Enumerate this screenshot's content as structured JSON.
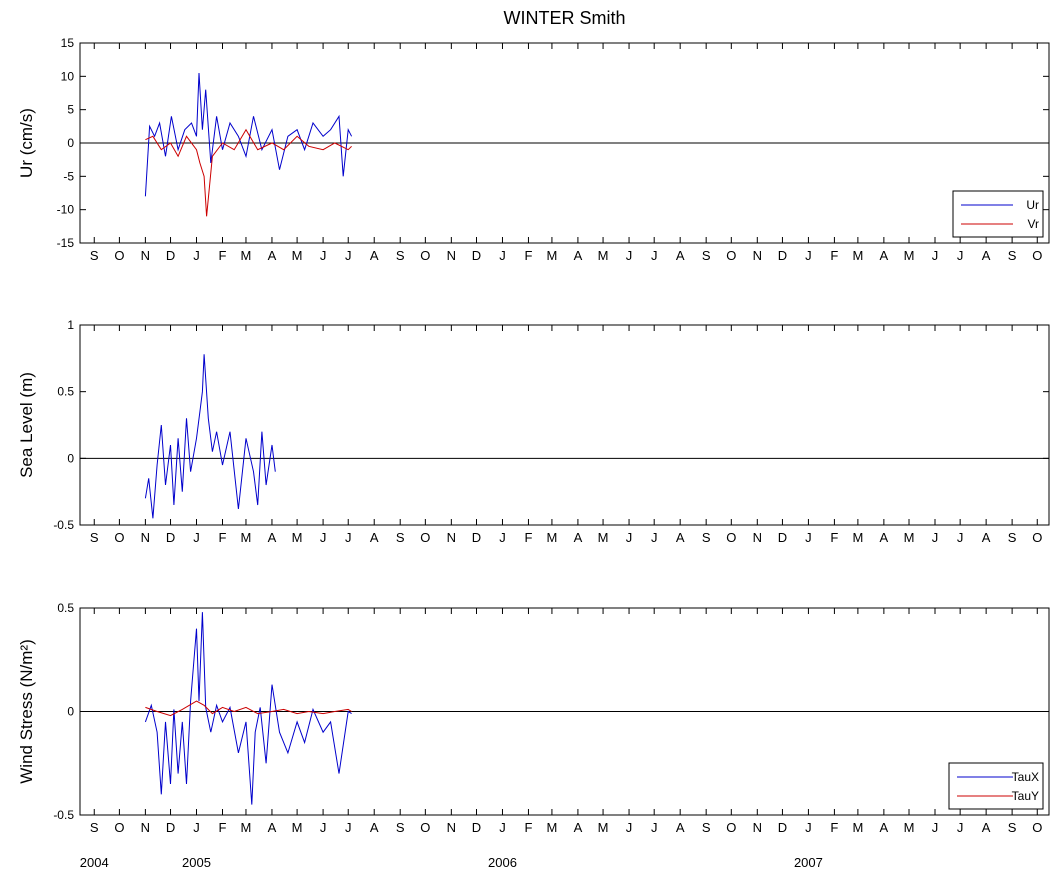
{
  "title": "WINTER Smith",
  "month_labels": [
    "S",
    "O",
    "N",
    "D",
    "J",
    "F",
    "M",
    "A",
    "M",
    "J",
    "J",
    "A",
    "S",
    "O",
    "N",
    "D",
    "J",
    "F",
    "M",
    "A",
    "M",
    "J",
    "J",
    "A",
    "S",
    "O",
    "N",
    "D",
    "J",
    "F",
    "M",
    "A",
    "M",
    "J",
    "J",
    "A",
    "S",
    "O"
  ],
  "year_labels": [
    {
      "label": "2004",
      "month_index": 0
    },
    {
      "label": "2005",
      "month_index": 4
    },
    {
      "label": "2006",
      "month_index": 16
    },
    {
      "label": "2007",
      "month_index": 28
    }
  ],
  "chart_data": [
    {
      "type": "line",
      "ylabel": "Ur (cm/s)",
      "ylim": [
        -15,
        15
      ],
      "yticks": [
        "15",
        "10",
        "5",
        "0",
        "-5",
        "-10",
        "-15"
      ],
      "ytick_values": [
        15,
        10,
        5,
        0,
        -5,
        -10,
        -15
      ],
      "legend": "bottom-right",
      "series": [
        {
          "name": "Ur",
          "color": "#0000cc",
          "x": [
            "2004-11-01",
            "2004-11-06",
            "2004-11-12",
            "2004-11-18",
            "2004-11-25",
            "2004-12-02",
            "2004-12-10",
            "2004-12-18",
            "2004-12-26",
            "2005-01-01",
            "2005-01-04",
            "2005-01-08",
            "2005-01-12",
            "2005-01-18",
            "2005-01-25",
            "2005-02-01",
            "2005-02-10",
            "2005-02-20",
            "2005-03-01",
            "2005-03-10",
            "2005-03-20",
            "2005-04-01",
            "2005-04-10",
            "2005-04-20",
            "2005-05-01",
            "2005-05-10",
            "2005-05-20",
            "2005-06-01",
            "2005-06-10",
            "2005-06-20",
            "2005-06-25",
            "2005-07-01",
            "2005-07-05"
          ],
          "y": [
            -8,
            2.5,
            1,
            3,
            -2,
            4,
            -1,
            2,
            3,
            1,
            10.5,
            2,
            8,
            -3,
            4,
            -1,
            3,
            1,
            -2,
            4,
            -1,
            2,
            -4,
            1,
            2,
            -1,
            3,
            1,
            2,
            4,
            -5,
            2,
            1
          ]
        },
        {
          "name": "Vr",
          "color": "#cc0000",
          "x": [
            "2004-11-01",
            "2004-11-10",
            "2004-11-20",
            "2004-12-01",
            "2004-12-10",
            "2004-12-20",
            "2005-01-01",
            "2005-01-05",
            "2005-01-10",
            "2005-01-13",
            "2005-01-20",
            "2005-02-01",
            "2005-02-15",
            "2005-03-01",
            "2005-03-15",
            "2005-04-01",
            "2005-04-15",
            "2005-05-01",
            "2005-05-15",
            "2005-06-01",
            "2005-06-15",
            "2005-07-01",
            "2005-07-05"
          ],
          "y": [
            0.5,
            1,
            -1,
            0,
            -2,
            1,
            -1,
            -3,
            -5,
            -11,
            -2,
            0,
            -1,
            2,
            -1,
            0,
            -1,
            1,
            -0.5,
            -1,
            0,
            -1,
            -0.5
          ]
        }
      ]
    },
    {
      "type": "line",
      "ylabel": "Sea Level (m)",
      "ylim": [
        -0.5,
        1
      ],
      "yticks": [
        "1",
        "0.5",
        "0",
        "-0.5"
      ],
      "ytick_values": [
        1,
        0.5,
        0,
        -0.5
      ],
      "series": [
        {
          "color": "#0000cc",
          "x": [
            "2004-11-01",
            "2004-11-05",
            "2004-11-10",
            "2004-11-15",
            "2004-11-20",
            "2004-11-25",
            "2004-12-01",
            "2004-12-05",
            "2004-12-10",
            "2004-12-15",
            "2004-12-20",
            "2004-12-25",
            "2005-01-01",
            "2005-01-05",
            "2005-01-08",
            "2005-01-10",
            "2005-01-15",
            "2005-01-20",
            "2005-01-25",
            "2005-02-01",
            "2005-02-10",
            "2005-02-20",
            "2005-03-01",
            "2005-03-10",
            "2005-03-15",
            "2005-03-20",
            "2005-03-25",
            "2005-04-01",
            "2005-04-05"
          ],
          "y": [
            -0.3,
            -0.15,
            -0.45,
            -0.05,
            0.25,
            -0.2,
            0.1,
            -0.35,
            0.15,
            -0.25,
            0.3,
            -0.1,
            0.15,
            0.35,
            0.5,
            0.78,
            0.3,
            0.05,
            0.2,
            -0.05,
            0.2,
            -0.38,
            0.15,
            -0.1,
            -0.35,
            0.2,
            -0.2,
            0.1,
            -0.1
          ]
        }
      ]
    },
    {
      "type": "line",
      "ylabel": "Wind Stress (N/m²)",
      "ylim": [
        -0.5,
        0.5
      ],
      "yticks": [
        "0.5",
        "0",
        "-0.5"
      ],
      "ytick_values": [
        0.5,
        0,
        -0.5
      ],
      "legend": "bottom-right",
      "series": [
        {
          "name": "TauX",
          "color": "#0000cc",
          "x": [
            "2004-11-01",
            "2004-11-08",
            "2004-11-15",
            "2004-11-20",
            "2004-11-25",
            "2004-12-01",
            "2004-12-05",
            "2004-12-10",
            "2004-12-15",
            "2004-12-20",
            "2004-12-25",
            "2005-01-01",
            "2005-01-04",
            "2005-01-08",
            "2005-01-12",
            "2005-01-18",
            "2005-01-25",
            "2005-02-01",
            "2005-02-10",
            "2005-02-20",
            "2005-03-01",
            "2005-03-08",
            "2005-03-12",
            "2005-03-18",
            "2005-03-25",
            "2005-04-01",
            "2005-04-10",
            "2005-04-20",
            "2005-05-01",
            "2005-05-10",
            "2005-05-20",
            "2005-06-01",
            "2005-06-10",
            "2005-06-20",
            "2005-07-01",
            "2005-07-05"
          ],
          "y": [
            -0.05,
            0.03,
            -0.1,
            -0.4,
            -0.05,
            -0.35,
            0.01,
            -0.3,
            -0.05,
            -0.35,
            0.05,
            0.4,
            0.05,
            0.48,
            0.02,
            -0.1,
            0.03,
            -0.05,
            0.02,
            -0.2,
            -0.05,
            -0.45,
            -0.1,
            0.02,
            -0.25,
            0.13,
            -0.1,
            -0.2,
            -0.05,
            -0.15,
            0.01,
            -0.1,
            -0.05,
            -0.3,
            0.0,
            -0.01
          ]
        },
        {
          "name": "TauY",
          "color": "#cc0000",
          "x": [
            "2004-11-01",
            "2004-11-15",
            "2004-12-01",
            "2004-12-15",
            "2005-01-01",
            "2005-01-10",
            "2005-01-20",
            "2005-02-01",
            "2005-02-15",
            "2005-03-01",
            "2005-03-15",
            "2005-04-01",
            "2005-04-15",
            "2005-05-01",
            "2005-05-15",
            "2005-06-01",
            "2005-06-15",
            "2005-07-01",
            "2005-07-05"
          ],
          "y": [
            0.02,
            0.0,
            -0.02,
            0.01,
            0.05,
            0.03,
            -0.01,
            0.02,
            0.0,
            0.02,
            -0.01,
            0.0,
            0.01,
            -0.01,
            0.0,
            -0.01,
            0.0,
            0.01,
            0.0
          ]
        }
      ]
    }
  ]
}
